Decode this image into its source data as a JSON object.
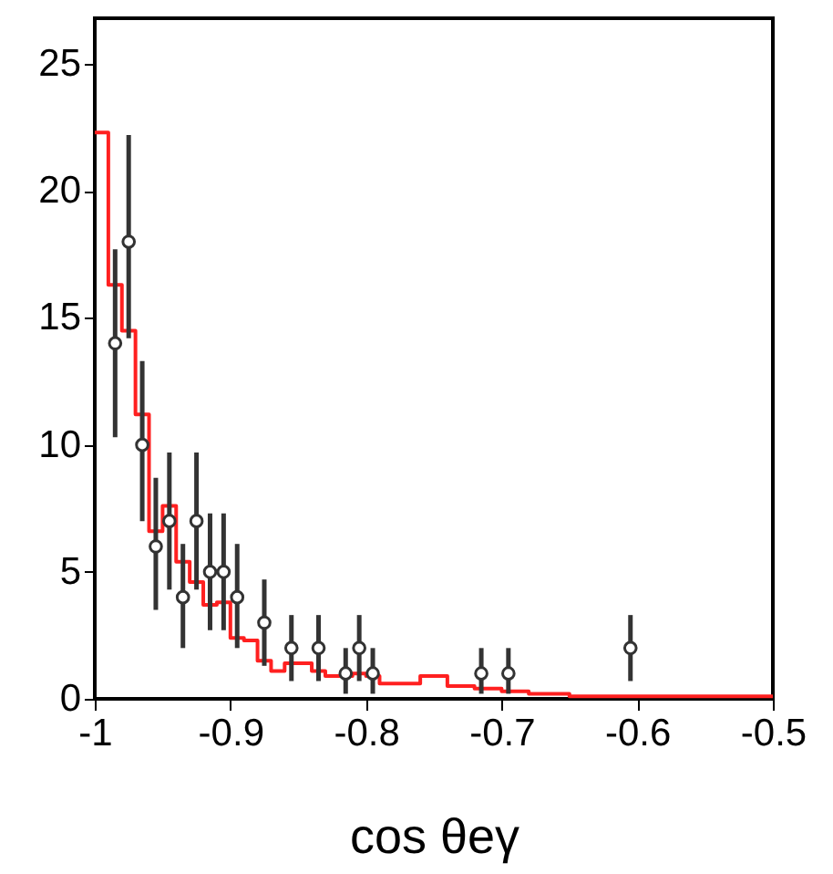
{
  "chart_data": {
    "type": "histogram",
    "xlabel": "cos θeγ",
    "xlim": [
      -1,
      -0.5
    ],
    "xticks": [
      -1,
      -0.9,
      -0.8,
      -0.7,
      -0.6,
      -0.5
    ],
    "ylim": [
      0,
      26.8
    ],
    "yticks": [
      0,
      5,
      10,
      15,
      20,
      25
    ],
    "marker": "circle",
    "series": [
      {
        "type": "histogram",
        "color": "#ff2020",
        "bins": [
          -1,
          -0.99,
          -0.98,
          -0.97,
          -0.96,
          -0.95,
          -0.94,
          -0.93,
          -0.92,
          -0.91,
          -0.9,
          -0.89,
          -0.88,
          -0.87,
          -0.86,
          -0.85,
          -0.84,
          -0.83,
          -0.82,
          -0.81,
          -0.8,
          -0.79,
          -0.78,
          -0.77,
          -0.76,
          -0.75,
          -0.74,
          -0.73,
          -0.72,
          -0.71,
          -0.7,
          -0.69,
          -0.68,
          -0.67,
          -0.66,
          -0.65,
          -0.64,
          -0.63,
          -0.62,
          -0.61,
          -0.6,
          -0.59,
          -0.58,
          -0.57,
          -0.56,
          -0.55,
          -0.54,
          -0.53,
          -0.52,
          -0.51,
          -0.5
        ],
        "values": [
          22.3,
          16.3,
          14.5,
          11.2,
          6.6,
          7.6,
          5.4,
          4.6,
          3.7,
          3.8,
          2.4,
          2.3,
          1.5,
          1.1,
          1.4,
          1.4,
          1.1,
          0.9,
          0.9,
          1.0,
          0.9,
          0.6,
          0.6,
          0.6,
          0.9,
          0.9,
          0.5,
          0.5,
          0.4,
          0.4,
          0.3,
          0.3,
          0.2,
          0.2,
          0.2,
          0.1,
          0.1,
          0.1,
          0.1,
          0.1,
          0.1,
          0.1,
          0.1,
          0.1,
          0.1,
          0.1,
          0.1,
          0.1,
          0.1,
          0.1
        ]
      },
      {
        "type": "scatter",
        "color": "#333333",
        "x": [
          -0.985,
          -0.975,
          -0.965,
          -0.955,
          -0.945,
          -0.935,
          -0.925,
          -0.915,
          -0.905,
          -0.895,
          -0.875,
          -0.855,
          -0.835,
          -0.815,
          -0.805,
          -0.795,
          -0.715,
          -0.695,
          -0.605
        ],
        "values": [
          14,
          18,
          10,
          6,
          7,
          4,
          7,
          5,
          5,
          4,
          3,
          2,
          2,
          1,
          2,
          1,
          1,
          1,
          2
        ],
        "errors": [
          [
            10.3,
            17.7
          ],
          [
            14.2,
            22.2
          ],
          [
            7,
            13.3
          ],
          [
            3.5,
            8.7
          ],
          [
            4.3,
            9.7
          ],
          [
            2,
            6.1
          ],
          [
            4.3,
            9.7
          ],
          [
            2.7,
            7.3
          ],
          [
            2.7,
            7.3
          ],
          [
            2,
            6.1
          ],
          [
            1.3,
            4.7
          ],
          [
            0.7,
            3.3
          ],
          [
            0.7,
            3.3
          ],
          [
            0.2,
            2
          ],
          [
            0.7,
            3.3
          ],
          [
            0.2,
            2
          ],
          [
            0.2,
            2
          ],
          [
            0.2,
            2
          ],
          [
            0.7,
            3.3
          ]
        ]
      }
    ]
  }
}
